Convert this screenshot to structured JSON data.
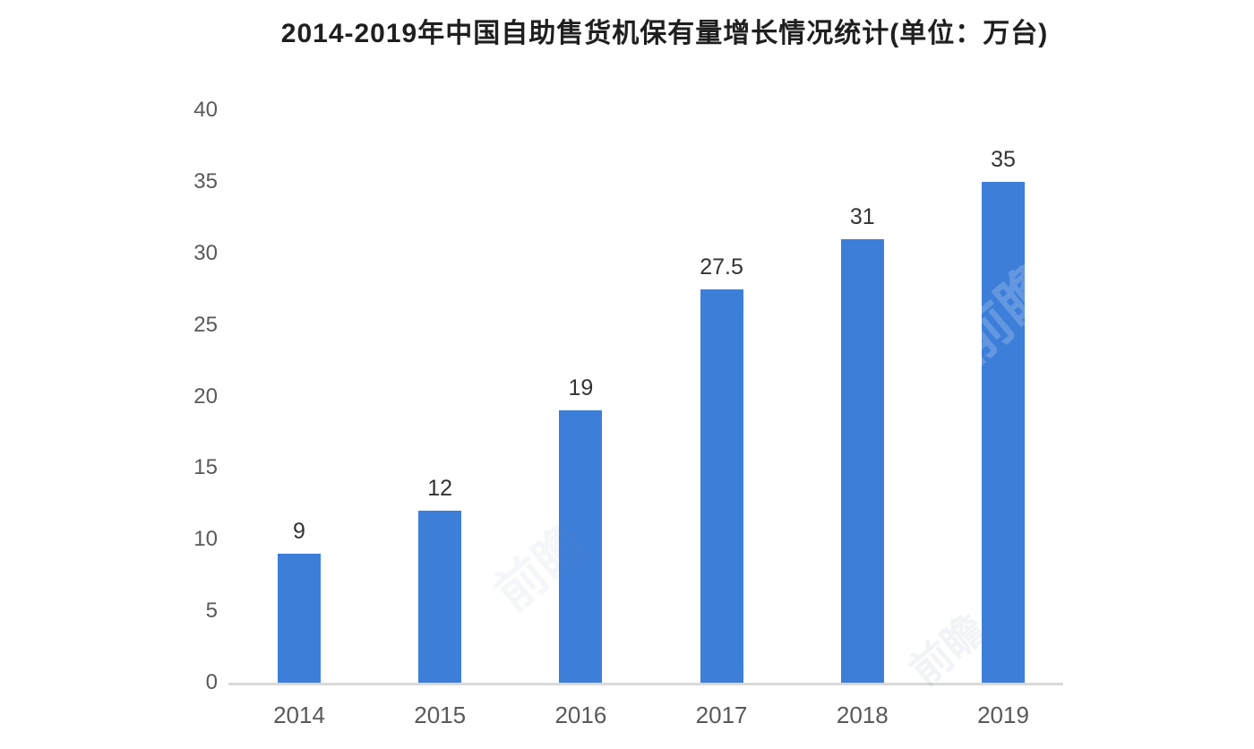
{
  "title": "2014-2019年中国自助售货机保有量增长情况统计(单位：万台)",
  "chart_data": {
    "type": "bar",
    "title": "2014-2019年中国自助售货机保有量增长情况统计(单位：万台)",
    "categories": [
      "2014",
      "2015",
      "2016",
      "2017",
      "2018",
      "2019"
    ],
    "values": [
      9,
      12,
      19,
      27.5,
      31,
      35
    ],
    "value_labels": [
      "9",
      "12",
      "19",
      "27.5",
      "31",
      "35"
    ],
    "yticks": [
      0,
      5,
      10,
      15,
      20,
      25,
      30,
      35,
      40
    ],
    "ylim": [
      0,
      40
    ],
    "xlabel": "",
    "ylabel": "",
    "grid": false,
    "legend": false,
    "bar_color": "#3d7ed9",
    "axis_line_color": "#d9d9d9",
    "value_label_color": "#333333",
    "tick_label_color": "#595959",
    "title_color": "#1f1f1f",
    "background_color": "#ffffff"
  },
  "watermark": {
    "text": "前瞻"
  }
}
